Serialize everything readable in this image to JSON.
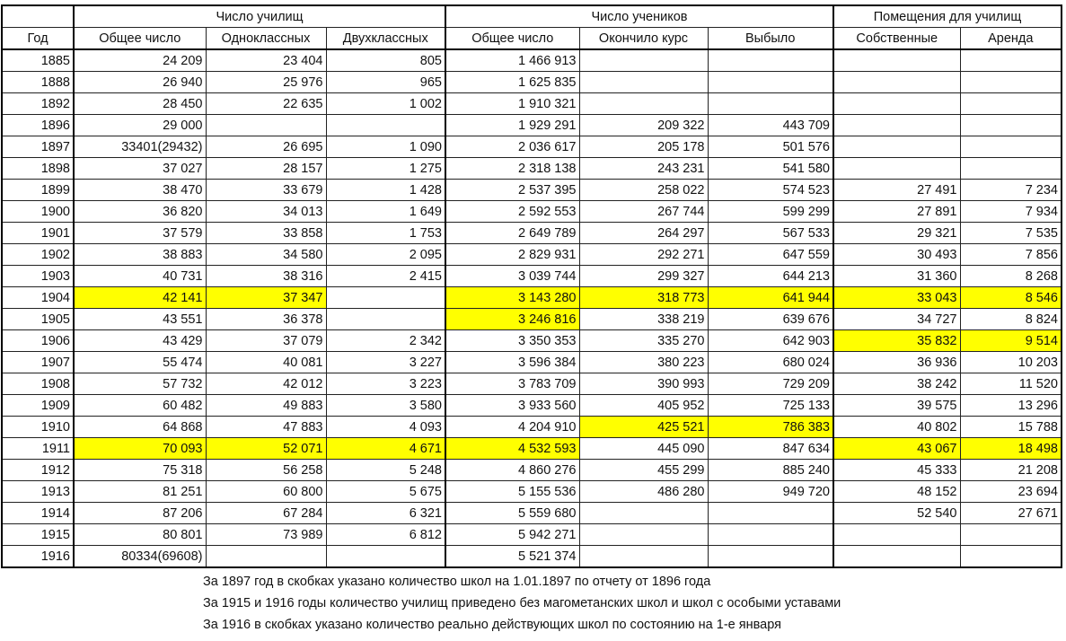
{
  "header": {
    "group_schools": "Число училищ",
    "group_students": "Число учеников",
    "group_premises": "Помещения для училищ",
    "columns": [
      "Год",
      "Общее число",
      "Одноклассных",
      "Двухклассных",
      "Общее число",
      "Окончило курс",
      "Выбыло",
      "Собственные",
      "Аренда"
    ]
  },
  "highlight_color": "#ffff00",
  "rows": [
    {
      "cells": [
        "1885",
        "24 209",
        "23 404",
        "805",
        "1 466 913",
        "",
        "",
        "",
        ""
      ],
      "hl": []
    },
    {
      "cells": [
        "1888",
        "26 940",
        "25 976",
        "965",
        "1 625 835",
        "",
        "",
        "",
        ""
      ],
      "hl": []
    },
    {
      "cells": [
        "1892",
        "28 450",
        "22 635",
        "1 002",
        "1 910 321",
        "",
        "",
        "",
        ""
      ],
      "hl": []
    },
    {
      "cells": [
        "1896",
        "29 000",
        "",
        "",
        "1 929 291",
        "209 322",
        "443 709",
        "",
        ""
      ],
      "hl": []
    },
    {
      "cells": [
        "1897",
        "33401(29432)",
        "26 695",
        "1 090",
        "2 036 617",
        "205 178",
        "501 576",
        "",
        ""
      ],
      "hl": []
    },
    {
      "cells": [
        "1898",
        "37 027",
        "28 157",
        "1 275",
        "2 318 138",
        "243 231",
        "541 580",
        "",
        ""
      ],
      "hl": []
    },
    {
      "cells": [
        "1899",
        "38 470",
        "33 679",
        "1 428",
        "2 537 395",
        "258 022",
        "574 523",
        "27 491",
        "7 234"
      ],
      "hl": []
    },
    {
      "cells": [
        "1900",
        "36 820",
        "34 013",
        "1 649",
        "2 592 553",
        "267 744",
        "599 299",
        "27 891",
        "7 934"
      ],
      "hl": []
    },
    {
      "cells": [
        "1901",
        "37 579",
        "33 858",
        "1 753",
        "2 649 789",
        "264 297",
        "567 533",
        "29 321",
        "7 535"
      ],
      "hl": []
    },
    {
      "cells": [
        "1902",
        "38 883",
        "34 580",
        "2 095",
        "2 829 931",
        "292 271",
        "647 559",
        "30 493",
        "7 856"
      ],
      "hl": []
    },
    {
      "cells": [
        "1903",
        "40 731",
        "38 316",
        "2 415",
        "3 039 744",
        "299 327",
        "644 213",
        "31 360",
        "8 268"
      ],
      "hl": []
    },
    {
      "cells": [
        "1904",
        "42 141",
        "37 347",
        "",
        "3 143 280",
        "318 773",
        "641 944",
        "33 043",
        "8 546"
      ],
      "hl": [
        1,
        2,
        4,
        5,
        6,
        7,
        8
      ]
    },
    {
      "cells": [
        "1905",
        "43 551",
        "36 378",
        "",
        "3 246 816",
        "338 219",
        "639 676",
        "34 727",
        "8 824"
      ],
      "hl": [
        4
      ]
    },
    {
      "cells": [
        "1906",
        "43 429",
        "37 079",
        "2 342",
        "3 350 353",
        "335 270",
        "642 903",
        "35 832",
        "9 514"
      ],
      "hl": [
        7,
        8
      ]
    },
    {
      "cells": [
        "1907",
        "55 474",
        "40 081",
        "3 227",
        "3 596 384",
        "380 223",
        "680 024",
        "36 936",
        "10 203"
      ],
      "hl": []
    },
    {
      "cells": [
        "1908",
        "57 732",
        "42 012",
        "3 223",
        "3 783 709",
        "390 993",
        "729 209",
        "38 242",
        "11 520"
      ],
      "hl": []
    },
    {
      "cells": [
        "1909",
        "60 482",
        "49 883",
        "3 580",
        "3 933 560",
        "405 952",
        "725 133",
        "39 575",
        "13 296"
      ],
      "hl": []
    },
    {
      "cells": [
        "1910",
        "64 868",
        "47 883",
        "4 093",
        "4 204 910",
        "425 521",
        "786 383",
        "40 802",
        "15 788"
      ],
      "hl": [
        5,
        6
      ]
    },
    {
      "cells": [
        "1911",
        "70 093",
        "52 071",
        "4 671",
        "4 532 593",
        "445 090",
        "847 634",
        "43 067",
        "18 498"
      ],
      "hl": [
        1,
        2,
        3,
        4,
        7,
        8
      ]
    },
    {
      "cells": [
        "1912",
        "75 318",
        "56 258",
        "5 248",
        "4 860 276",
        "455 299",
        "885 240",
        "45 333",
        "21 208"
      ],
      "hl": []
    },
    {
      "cells": [
        "1913",
        "81 251",
        "60 800",
        "5 675",
        "5 155 536",
        "486 280",
        "949 720",
        "48 152",
        "23 694"
      ],
      "hl": []
    },
    {
      "cells": [
        "1914",
        "87 206",
        "67 284",
        "6 321",
        "5 559 680",
        "",
        "",
        "52 540",
        "27 671"
      ],
      "hl": []
    },
    {
      "cells": [
        "1915",
        "80 801",
        "73 989",
        "6 812",
        "5 942 271",
        "",
        "",
        "",
        ""
      ],
      "hl": []
    },
    {
      "cells": [
        "1916",
        "80334(69608)",
        "",
        "",
        "5 521 374",
        "",
        "",
        "",
        ""
      ],
      "hl": []
    }
  ],
  "notes": [
    "За 1897 год в скобках указано количество школ на 1.01.1897 по отчету от 1896 года",
    "За 1915 и 1916 годы количество училищ приведено без магометанских школ и школ с особыми уставами",
    "За 1916 в скобках  указано количество реально действующих школ по состоянию на 1-е января"
  ]
}
